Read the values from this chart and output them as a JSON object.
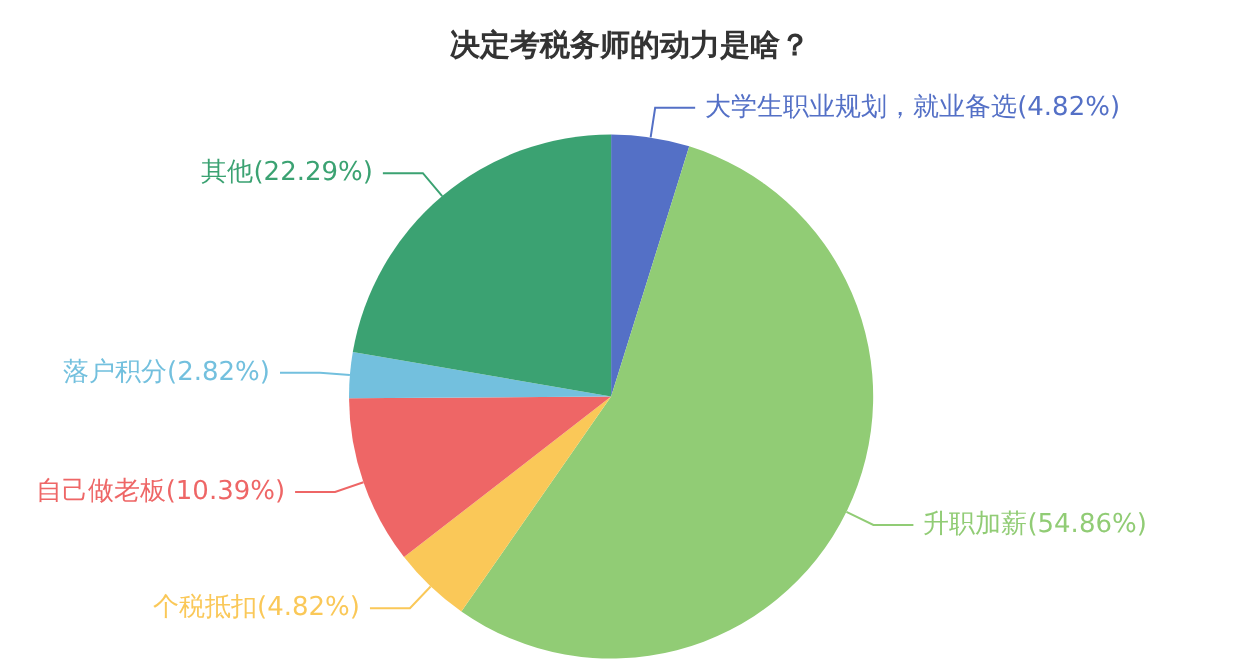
{
  "chart_data": {
    "type": "pie",
    "title": "决定考税务师的动力是啥？",
    "categories": [
      "大学生职业规划，就业备选",
      "升职加薪",
      "个税抵扣",
      "自己做老板",
      "落户积分",
      "其他"
    ],
    "values": [
      4.82,
      54.86,
      4.82,
      10.39,
      2.82,
      22.29
    ],
    "value_labels": [
      "(4.82%)",
      "(54.86%)",
      "(4.82%)",
      "(10.39%)",
      "(2.82%)",
      "(22.29%)"
    ],
    "colors": [
      "#5470c6",
      "#91cc75",
      "#fac858",
      "#ee6666",
      "#73c0de",
      "#3ba272"
    ]
  }
}
